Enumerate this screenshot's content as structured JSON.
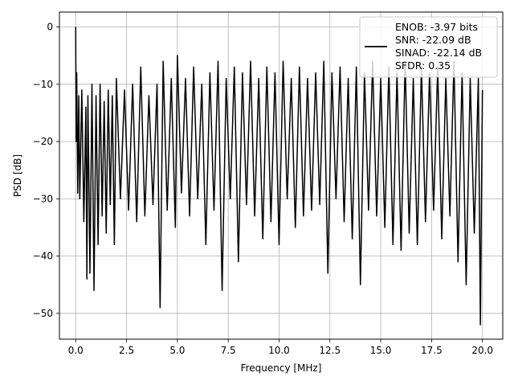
{
  "chart_data": {
    "type": "line",
    "xlabel": "Frequency [MHz]",
    "ylabel": "PSD [dB]",
    "xlim": [
      -0.8,
      21.0
    ],
    "ylim": [
      -54.5,
      2.6
    ],
    "xticks": [
      0.0,
      2.5,
      5.0,
      7.5,
      10.0,
      12.5,
      15.0,
      17.5,
      20.0
    ],
    "xtick_labels": [
      "0.0",
      "2.5",
      "5.0",
      "7.5",
      "10.0",
      "12.5",
      "15.0",
      "17.5",
      "20.0"
    ],
    "yticks": [
      0,
      -10,
      -20,
      -30,
      -40,
      -50
    ],
    "ytick_labels": [
      "0",
      "−10",
      "−20",
      "−30",
      "−40",
      "−50"
    ],
    "grid": true,
    "legend_placement": "top-right",
    "series_color": "#000000",
    "legend_lines": [
      "ENOB: -3.97 bits",
      "SNR: -22.09 dB",
      "SINAD: -22.14 dB",
      "SFDR: 0.35"
    ],
    "series": [
      {
        "x": [
          0.0,
          0.02,
          0.05,
          0.1,
          0.15,
          0.2,
          0.3,
          0.4,
          0.5,
          0.55,
          0.6,
          0.7,
          0.8,
          0.9,
          1.0,
          1.1,
          1.2,
          1.3,
          1.4,
          1.5,
          1.6,
          1.7,
          1.8,
          1.9,
          2.0,
          2.2,
          2.4,
          2.6,
          2.8,
          3.0,
          3.2,
          3.4,
          3.6,
          3.8,
          4.0,
          4.15,
          4.3,
          4.5,
          4.7,
          4.9,
          5.0,
          5.2,
          5.4,
          5.6,
          5.8,
          6.0,
          6.2,
          6.4,
          6.6,
          6.8,
          7.0,
          7.2,
          7.4,
          7.6,
          7.8,
          8.0,
          8.2,
          8.4,
          8.6,
          8.8,
          9.0,
          9.2,
          9.4,
          9.6,
          9.8,
          10.0,
          10.2,
          10.4,
          10.6,
          10.8,
          11.0,
          11.2,
          11.4,
          11.6,
          11.8,
          12.0,
          12.2,
          12.4,
          12.6,
          12.8,
          13.0,
          13.2,
          13.4,
          13.6,
          13.8,
          14.0,
          14.2,
          14.4,
          14.6,
          14.8,
          15.0,
          15.2,
          15.4,
          15.6,
          15.8,
          16.0,
          16.2,
          16.4,
          16.6,
          16.8,
          17.0,
          17.2,
          17.4,
          17.6,
          17.8,
          18.0,
          18.2,
          18.4,
          18.6,
          18.8,
          19.0,
          19.2,
          19.4,
          19.6,
          19.8,
          19.9,
          20.0
        ],
        "y": [
          0,
          -20,
          -8,
          -29,
          -12,
          -30,
          -11,
          -34,
          -14,
          -44,
          -12,
          -43,
          -10,
          -46,
          -12,
          -38,
          -10,
          -33,
          -13,
          -36,
          -11,
          -31,
          -12,
          -38,
          -9,
          -30,
          -11,
          -32,
          -10,
          -34,
          -7,
          -33,
          -12,
          -31,
          -10,
          -49,
          -6,
          -32,
          -9,
          -35,
          -5,
          -29,
          -9,
          -33,
          -7,
          -30,
          -10,
          -38,
          -8,
          -32,
          -6,
          -46,
          -9,
          -30,
          -7,
          -41,
          -8,
          -31,
          -6,
          -33,
          -9,
          -37,
          -7,
          -34,
          -8,
          -38,
          -6,
          -30,
          -9,
          -35,
          -7,
          -33,
          -9,
          -32,
          -8,
          -31,
          -6,
          -43,
          -8,
          -30,
          -7,
          -34,
          -9,
          -37,
          -7,
          -45,
          -8,
          -32,
          -6,
          -33,
          -9,
          -35,
          -7,
          -38,
          -8,
          -39,
          -6,
          -36,
          -9,
          -38,
          -7,
          -34,
          -8,
          -32,
          -7,
          -37,
          -9,
          -33,
          -6,
          -41,
          -8,
          -45,
          -9,
          -36,
          -9,
          -52,
          -11
        ]
      }
    ]
  }
}
